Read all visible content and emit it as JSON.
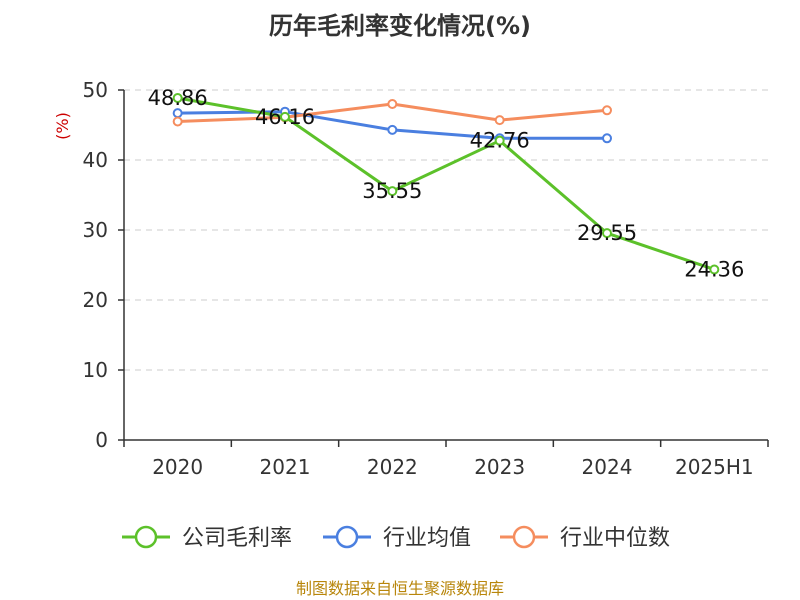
{
  "chart_data": {
    "type": "line",
    "title": "历年毛利率变化情况(%)",
    "ylabel": "(%)",
    "categories": [
      "2020",
      "2021",
      "2022",
      "2023",
      "2024",
      "2025H1"
    ],
    "ylim": [
      0,
      50
    ],
    "yticks": [
      0,
      10,
      20,
      30,
      40,
      50
    ],
    "grid": true,
    "legend_position": "bottom",
    "series": [
      {
        "name": "公司毛利率",
        "color": "#5cc12a",
        "labels_shown": true,
        "values": [
          48.86,
          46.16,
          35.55,
          42.76,
          29.55,
          24.36
        ],
        "labels": [
          "48.86",
          "46.16",
          "35.55",
          "42.76",
          "29.55",
          "24.36"
        ]
      },
      {
        "name": "行业均值",
        "color": "#4a7fe0",
        "labels_shown": false,
        "values": [
          46.7,
          46.9,
          44.3,
          43.1,
          43.1,
          null
        ]
      },
      {
        "name": "行业中位数",
        "color": "#f58d5e",
        "labels_shown": false,
        "values": [
          45.5,
          46.1,
          48.0,
          45.7,
          47.1,
          null
        ]
      }
    ]
  },
  "source": "制图数据来自恒生聚源数据库"
}
